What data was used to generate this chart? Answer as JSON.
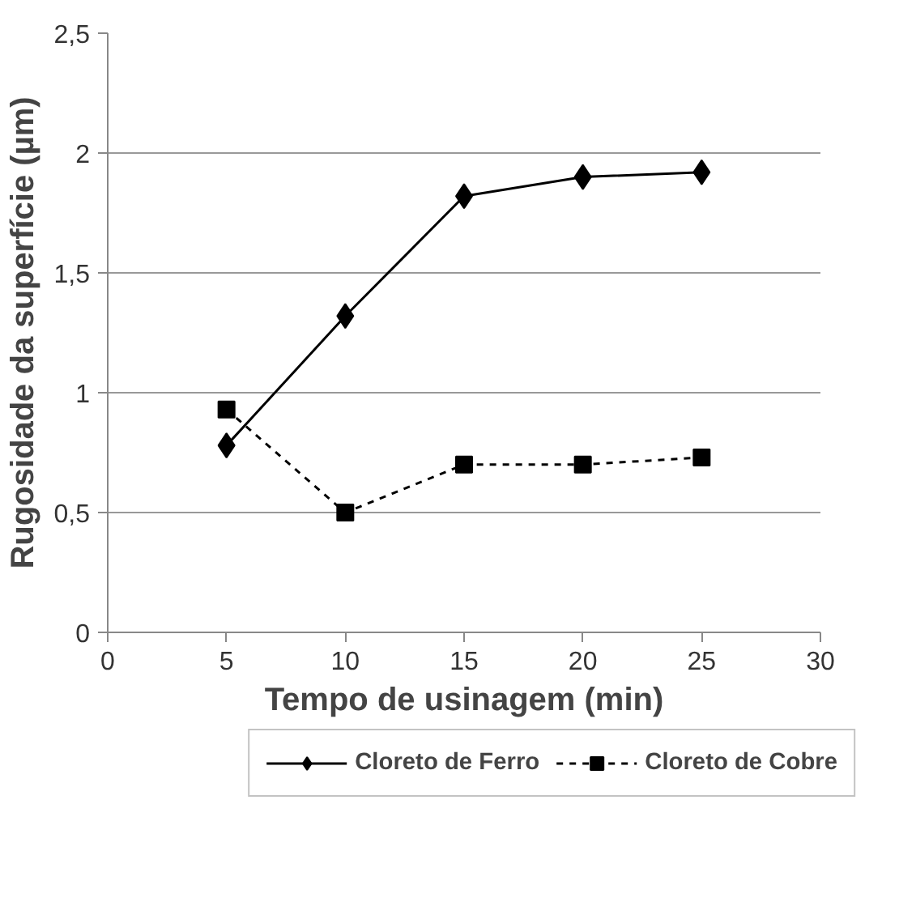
{
  "chart_data": {
    "type": "line",
    "xlabel": "Tempo de usinagem (min)",
    "ylabel": "Rugosidade da superfície (µm)",
    "x": [
      5,
      10,
      15,
      20,
      25
    ],
    "series": [
      {
        "name": "Cloreto de Ferro",
        "color": "#000000",
        "values": [
          0.78,
          1.32,
          1.82,
          1.9,
          1.92
        ],
        "marker": "diamond",
        "line_style": "solid"
      },
      {
        "name": "Cloreto de Cobre",
        "color": "#000000",
        "values": [
          0.93,
          0.5,
          0.7,
          0.7,
          0.73
        ],
        "marker": "square",
        "line_style": "dashed"
      }
    ],
    "xlim": [
      0,
      30
    ],
    "xticks": [
      0,
      5,
      10,
      15,
      20,
      25,
      30
    ],
    "ylim": [
      0,
      2.5
    ],
    "yticks": [
      0,
      {
        "value": 0.5,
        "label": "0,5"
      },
      1,
      {
        "value": 1.5,
        "label": "1,5"
      },
      2,
      {
        "value": 2.5,
        "label": "2,5"
      }
    ],
    "grid": "y",
    "legend": "bottom"
  }
}
